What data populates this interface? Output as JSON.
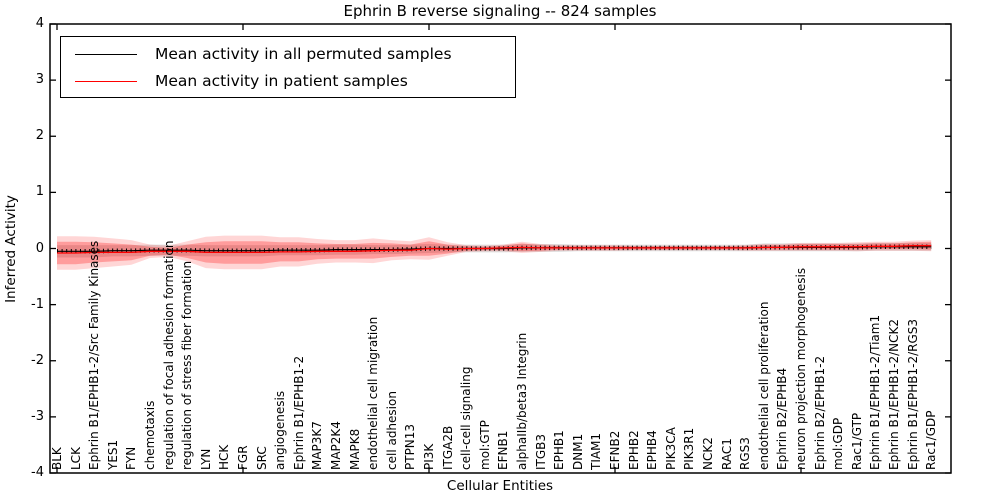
{
  "figure": {
    "title": "Ephrin B reverse signaling -- 824 samples",
    "xlabel": "Cellular Entities",
    "ylabel": "Inferred Activity"
  },
  "legend": {
    "items": [
      {
        "label": "Mean activity in all permuted samples",
        "color": "#000000"
      },
      {
        "label": "Mean activity in patient samples",
        "color": "#ff0000"
      }
    ]
  },
  "chart_data": {
    "type": "line",
    "title": "Ephrin B reverse signaling -- 824 samples",
    "xlabel": "Cellular Entities",
    "ylabel": "Inferred Activity",
    "ylim": [
      -4,
      4
    ],
    "y_ticks": [
      -4,
      -3,
      -2,
      -1,
      0,
      1,
      2,
      3,
      4
    ],
    "x_tick_interval": 10,
    "grid": false,
    "legend_position": "upper left",
    "categories": [
      "BLK",
      "LCK",
      "Ephrin B1/EPHB1-2/Src Family Kinases",
      "YES1",
      "FYN",
      "chemotaxis",
      "regulation of focal adhesion formation",
      "regulation of stress fiber formation",
      "LYN",
      "HCK",
      "FGR",
      "SRC",
      "angiogenesis",
      "Ephrin B1/EPHB1-2",
      "MAP3K7",
      "MAP2K4",
      "MAPK8",
      "endothelial cell migration",
      "cell adhesion",
      "PTPN13",
      "PI3K",
      "ITGA2B",
      "cell-cell signaling",
      "mol:GTP",
      "EFNB1",
      "alphaIIb/beta3 Integrin",
      "ITGB3",
      "EPHB1",
      "DNM1",
      "TIAM1",
      "EFNB2",
      "EPHB2",
      "EPHB4",
      "PIK3CA",
      "PIK3R1",
      "NCK2",
      "RAC1",
      "RGS3",
      "endothelial cell proliferation",
      "Ephrin B2/EPHB4",
      "neuron projection morphogenesis",
      "Ephrin B2/EPHB1-2",
      "mol:GDP",
      "Rac1/GTP",
      "Ephrin B1/EPHB1-2/Tiam1",
      "Ephrin B1/EPHB1-2/NCK2",
      "Ephrin B1/EPHB1-2/RGS3",
      "Rac1/GDP"
    ],
    "series": [
      {
        "name": "Mean activity in all permuted samples",
        "color": "#000000",
        "values": [
          -0.05,
          -0.05,
          -0.05,
          -0.04,
          -0.04,
          -0.03,
          -0.03,
          -0.03,
          -0.04,
          -0.04,
          -0.04,
          -0.04,
          -0.03,
          -0.03,
          -0.03,
          -0.02,
          -0.02,
          -0.02,
          -0.02,
          -0.01,
          0.0,
          0.0,
          0.0,
          0.0,
          0.0,
          0.01,
          0.01,
          0.01,
          0.01,
          0.01,
          0.01,
          0.01,
          0.01,
          0.01,
          0.01,
          0.01,
          0.01,
          0.01,
          0.02,
          0.02,
          0.02,
          0.02,
          0.02,
          0.02,
          0.03,
          0.03,
          0.03,
          0.03
        ]
      },
      {
        "name": "Mean activity in patient samples",
        "color": "#ff0000",
        "values": [
          -0.08,
          -0.08,
          -0.07,
          -0.07,
          -0.07,
          -0.05,
          -0.05,
          -0.05,
          -0.07,
          -0.07,
          -0.07,
          -0.07,
          -0.06,
          -0.06,
          -0.05,
          -0.05,
          -0.05,
          -0.04,
          -0.03,
          -0.03,
          0.0,
          -0.01,
          0.0,
          0.0,
          0.01,
          0.02,
          0.01,
          0.01,
          0.01,
          0.01,
          0.01,
          0.01,
          0.01,
          0.01,
          0.01,
          0.01,
          0.01,
          0.01,
          0.02,
          0.02,
          0.03,
          0.03,
          0.03,
          0.03,
          0.04,
          0.04,
          0.05,
          0.05
        ]
      }
    ],
    "bands": [
      {
        "name": "permuted-samples-spread",
        "color": "rgba(0,0,0,0.13)",
        "center_series": 0,
        "half_widths": [
          0.11,
          0.11,
          0.11,
          0.1,
          0.1,
          0.1,
          0.1,
          0.1,
          0.1,
          0.1,
          0.1,
          0.1,
          0.09,
          0.09,
          0.09,
          0.09,
          0.09,
          0.08,
          0.08,
          0.08,
          0.08,
          0.07,
          0.07,
          0.07,
          0.07,
          0.07,
          0.07,
          0.07,
          0.06,
          0.06,
          0.06,
          0.06,
          0.06,
          0.06,
          0.06,
          0.06,
          0.06,
          0.06,
          0.07,
          0.07,
          0.07,
          0.07,
          0.07,
          0.07,
          0.07,
          0.07,
          0.07,
          0.07
        ]
      },
      {
        "name": "patient-samples-spread-outer",
        "color": "rgba(255,0,0,0.16)",
        "center_series": 1,
        "half_widths": [
          0.3,
          0.3,
          0.28,
          0.25,
          0.22,
          0.12,
          0.1,
          0.18,
          0.28,
          0.3,
          0.3,
          0.3,
          0.26,
          0.26,
          0.22,
          0.2,
          0.2,
          0.22,
          0.18,
          0.16,
          0.2,
          0.12,
          0.06,
          0.05,
          0.06,
          0.1,
          0.07,
          0.05,
          0.05,
          0.05,
          0.05,
          0.04,
          0.04,
          0.04,
          0.04,
          0.04,
          0.04,
          0.05,
          0.06,
          0.06,
          0.07,
          0.07,
          0.07,
          0.08,
          0.08,
          0.08,
          0.09,
          0.1
        ]
      },
      {
        "name": "patient-samples-spread-inner",
        "color": "rgba(255,0,0,0.27)",
        "center_series": 1,
        "half_widths": [
          0.2,
          0.2,
          0.18,
          0.16,
          0.14,
          0.08,
          0.06,
          0.12,
          0.18,
          0.2,
          0.2,
          0.2,
          0.17,
          0.17,
          0.14,
          0.13,
          0.13,
          0.14,
          0.12,
          0.1,
          0.13,
          0.08,
          0.04,
          0.03,
          0.04,
          0.07,
          0.05,
          0.03,
          0.03,
          0.03,
          0.03,
          0.03,
          0.03,
          0.03,
          0.03,
          0.03,
          0.03,
          0.03,
          0.04,
          0.04,
          0.05,
          0.05,
          0.05,
          0.05,
          0.05,
          0.05,
          0.06,
          0.07
        ]
      }
    ]
  }
}
